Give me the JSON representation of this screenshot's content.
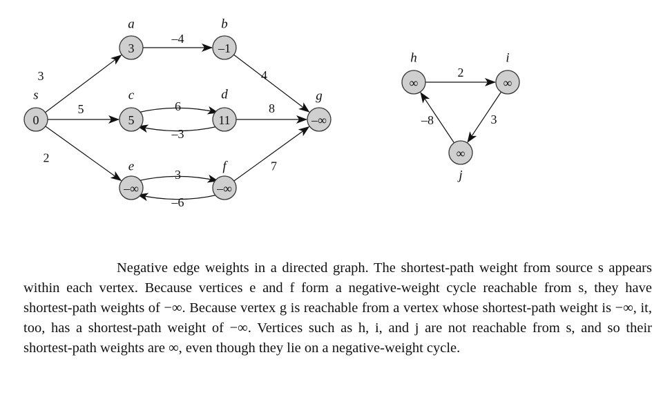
{
  "diagram": {
    "nodes": [
      {
        "id": "s",
        "label": "s",
        "value": "0"
      },
      {
        "id": "a",
        "label": "a",
        "value": "3"
      },
      {
        "id": "b",
        "label": "b",
        "value": "–1"
      },
      {
        "id": "c",
        "label": "c",
        "value": "5"
      },
      {
        "id": "d",
        "label": "d",
        "value": "11"
      },
      {
        "id": "e",
        "label": "e",
        "value": "–∞"
      },
      {
        "id": "f",
        "label": "f",
        "value": "–∞"
      },
      {
        "id": "g",
        "label": "g",
        "value": "–∞"
      },
      {
        "id": "h",
        "label": "h",
        "value": "∞"
      },
      {
        "id": "i",
        "label": "i",
        "value": "∞"
      },
      {
        "id": "j",
        "label": "j",
        "value": "∞"
      }
    ],
    "edges": [
      {
        "id": "s-a",
        "from": "s",
        "to": "a",
        "weight": "3"
      },
      {
        "id": "s-c",
        "from": "s",
        "to": "c",
        "weight": "5"
      },
      {
        "id": "s-e",
        "from": "s",
        "to": "e",
        "weight": "2"
      },
      {
        "id": "a-b",
        "from": "a",
        "to": "b",
        "weight": "–4"
      },
      {
        "id": "b-g",
        "from": "b",
        "to": "g",
        "weight": "4"
      },
      {
        "id": "c-d",
        "from": "c",
        "to": "d",
        "weight": "6"
      },
      {
        "id": "d-c",
        "from": "d",
        "to": "c",
        "weight": "–3"
      },
      {
        "id": "d-g",
        "from": "d",
        "to": "g",
        "weight": "8"
      },
      {
        "id": "e-f",
        "from": "e",
        "to": "f",
        "weight": "3"
      },
      {
        "id": "f-e",
        "from": "f",
        "to": "e",
        "weight": "–6"
      },
      {
        "id": "f-g",
        "from": "f",
        "to": "g",
        "weight": "7"
      },
      {
        "id": "h-i",
        "from": "h",
        "to": "i",
        "weight": "2"
      },
      {
        "id": "i-j",
        "from": "i",
        "to": "j",
        "weight": "3"
      },
      {
        "id": "j-h",
        "from": "j",
        "to": "h",
        "weight": "–8"
      }
    ]
  },
  "caption": "Negative edge weights in a directed graph. The shortest-path weight from source s appears within each vertex. Because vertices e and f form a negative-weight cycle reachable from s, they have shortest-path weights of −∞. Because vertex g is reachable from a vertex whose shortest-path weight is −∞, it, too, has a shortest-path weight of −∞. Vertices such as h, i, and j are not reachable from s, and so their shortest-path weights are ∞, even though they lie on a negative-weight cycle."
}
